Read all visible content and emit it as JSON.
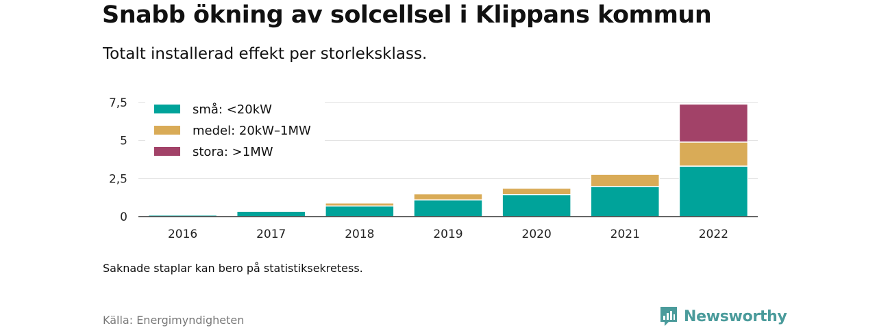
{
  "header": {
    "title": "Snabb ökning av solcellsel i Klippans kommun",
    "subtitle": "Totalt installerad effekt per storleksklass."
  },
  "footer": {
    "note": "Saknade staplar kan bero på statistiksekretess.",
    "source": "Källa: Energimyndigheten",
    "brand": "Newsworthy"
  },
  "colors": {
    "small": "#00a39a",
    "medium": "#d9ab57",
    "large": "#a24268",
    "brand": "#4a9b9b"
  },
  "chart_data": {
    "type": "bar",
    "stacked": true,
    "categories": [
      "2016",
      "2017",
      "2018",
      "2019",
      "2020",
      "2021",
      "2022"
    ],
    "series": [
      {
        "name": "små: <20kW",
        "values": [
          0.1,
          0.35,
          0.7,
          1.1,
          1.45,
          1.98,
          3.32
        ]
      },
      {
        "name": "medel: 20kW–1MW",
        "values": [
          0.0,
          0.0,
          0.2,
          0.4,
          0.42,
          0.8,
          1.58
        ]
      },
      {
        "name": "stora: >1MW",
        "values": [
          0.0,
          0.0,
          0.0,
          0.0,
          0.0,
          0.0,
          2.5
        ]
      }
    ],
    "yticks": [
      0,
      2.5,
      5,
      7.5
    ],
    "ytick_labels": [
      "0",
      "2,5",
      "5",
      "7,5"
    ],
    "ylim": [
      0,
      8.0
    ],
    "grid": true,
    "legend_position": "top-left"
  }
}
